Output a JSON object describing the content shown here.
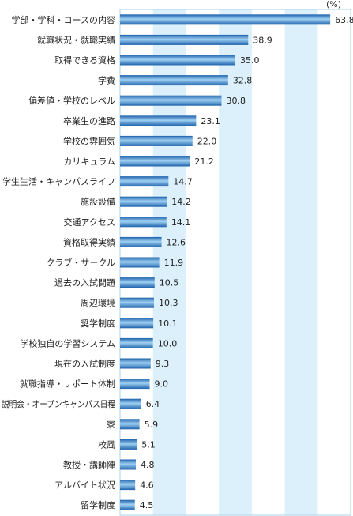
{
  "chart_data": {
    "type": "bar",
    "orientation": "horizontal",
    "unit": "(%)",
    "xlim": [
      0,
      70
    ],
    "grid": true,
    "categories": [
      "学部・学科・コースの内容",
      "就職状況・就職実績",
      "取得できる資格",
      "学費",
      "偏差値・学校のレベル",
      "卒業生の進路",
      "学校の雰囲気",
      "カリキュラム",
      "学生生活・キャンパスライフ",
      "施設設備",
      "交通アクセス",
      "資格取得実績",
      "クラブ・サークル",
      "過去の入試問題",
      "周辺環境",
      "奨学制度",
      "学校独自の学習システム",
      "現在の入試制度",
      "就職指導・サポート体制",
      "説明会・オープンキャンパス日程",
      "寮",
      "校風",
      "教授・講師陣",
      "アルバイト状況",
      "留学制度"
    ],
    "values": [
      63.8,
      38.9,
      35.0,
      32.8,
      30.8,
      23.1,
      22.0,
      21.2,
      14.7,
      14.2,
      14.1,
      12.6,
      11.9,
      10.5,
      10.3,
      10.1,
      10.0,
      9.3,
      9.0,
      6.4,
      5.9,
      5.1,
      4.8,
      4.6,
      4.5
    ],
    "value_labels": [
      "63.8",
      "38.9",
      "35.0",
      "32.8",
      "30.8",
      "23.1",
      "22.0",
      "21.2",
      "14.7",
      "14.2",
      "14.1",
      "12.6",
      "11.9",
      "10.5",
      "10.3",
      "10.1",
      "10.0",
      "9.3",
      "9.0",
      "6.4",
      "5.9",
      "5.1",
      "4.8",
      "4.6",
      "4.5"
    ],
    "colors": {
      "bar_dark": "#1f63ad",
      "bar_light": "#9fd0f2",
      "stripe": "#dcf0fb",
      "frame": "#a7d3ee"
    }
  }
}
